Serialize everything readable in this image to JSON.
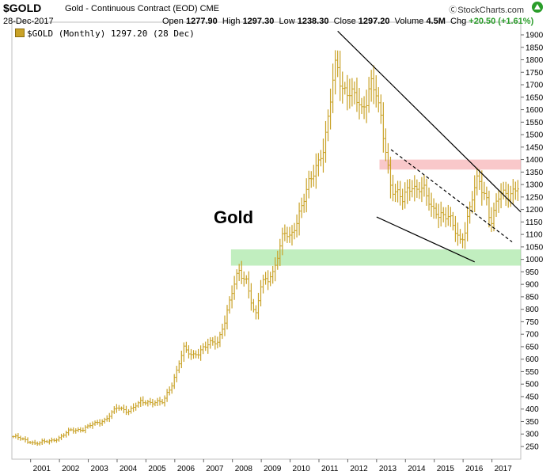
{
  "header": {
    "symbol": "$GOLD",
    "description": "Gold - Continuous Contract (EOD) CME",
    "date": "28-Dec-2017",
    "open_label": "Open",
    "open": "1277.90",
    "high_label": "High",
    "high": "1297.30",
    "low_label": "Low",
    "low": "1238.30",
    "close_label": "Close",
    "close": "1297.20",
    "volume_label": "Volume",
    "volume": "4.5M",
    "chg_label": "Chg",
    "chg": "+20.50 (+1.61%)",
    "watermark": "StockCharts.com"
  },
  "legend": {
    "text": "$GOLD (Monthly) 1297.20 (28 Dec)"
  },
  "annotation": {
    "text": "Gold"
  },
  "colors": {
    "bars": "#c9a227",
    "green_zone": "#8ee08a",
    "red_zone": "#f5a3a6",
    "trendline": "#000000"
  },
  "chart_data": {
    "type": "bar",
    "subtype": "ohlc-monthly",
    "title": "$GOLD (Monthly) 1297.20 (28 Dec)",
    "x_range": [
      2000.35,
      2018.0
    ],
    "ylim": [
      250,
      1950
    ],
    "y_ticks": [
      250,
      300,
      350,
      400,
      450,
      500,
      550,
      600,
      650,
      700,
      750,
      800,
      850,
      900,
      950,
      1000,
      1050,
      1100,
      1150,
      1200,
      1250,
      1300,
      1350,
      1400,
      1450,
      1500,
      1550,
      1600,
      1650,
      1700,
      1750,
      1800,
      1850,
      1900
    ],
    "x_ticks": [
      {
        "label": "2001",
        "x": 2001.0
      },
      {
        "label": "2002",
        "x": 2002.0
      },
      {
        "label": "2003",
        "x": 2003.0
      },
      {
        "label": "2004",
        "x": 2004.0
      },
      {
        "label": "2005",
        "x": 2005.0
      },
      {
        "label": "2006",
        "x": 2006.0
      },
      {
        "label": "2007",
        "x": 2007.0
      },
      {
        "label": "2008",
        "x": 2008.0
      },
      {
        "label": "2009",
        "x": 2009.0
      },
      {
        "label": "2010",
        "x": 2010.0
      },
      {
        "label": "2011",
        "x": 2011.0
      },
      {
        "label": "2012",
        "x": 2012.0
      },
      {
        "label": "2013",
        "x": 2013.0
      },
      {
        "label": "2014",
        "x": 2014.0
      },
      {
        "label": "2015",
        "x": 2015.0
      },
      {
        "label": "2016",
        "x": 2016.0
      },
      {
        "label": "2017",
        "x": 2017.0
      }
    ],
    "y_axis_side": "right",
    "grid": false,
    "anchors": [
      [
        2000.4,
        290
      ],
      [
        2000.8,
        275
      ],
      [
        2001.2,
        262
      ],
      [
        2001.6,
        270
      ],
      [
        2002.0,
        285
      ],
      [
        2002.4,
        315
      ],
      [
        2002.8,
        320
      ],
      [
        2003.2,
        340
      ],
      [
        2003.6,
        360
      ],
      [
        2004.0,
        405
      ],
      [
        2004.4,
        395
      ],
      [
        2004.8,
        425
      ],
      [
        2005.2,
        430
      ],
      [
        2005.6,
        425
      ],
      [
        2005.9,
        500
      ],
      [
        2006.3,
        640
      ],
      [
        2006.6,
        610
      ],
      [
        2007.0,
        650
      ],
      [
        2007.5,
        670
      ],
      [
        2007.8,
        790
      ],
      [
        2008.2,
        950
      ],
      [
        2008.5,
        920
      ],
      [
        2008.8,
        760
      ],
      [
        2009.0,
        900
      ],
      [
        2009.4,
        950
      ],
      [
        2009.8,
        1100
      ],
      [
        2010.0,
        1090
      ],
      [
        2010.5,
        1240
      ],
      [
        2010.9,
        1380
      ],
      [
        2011.2,
        1460
      ],
      [
        2011.6,
        1800
      ],
      [
        2011.8,
        1700
      ],
      [
        2012.2,
        1650
      ],
      [
        2012.5,
        1600
      ],
      [
        2012.8,
        1720
      ],
      [
        2013.0,
        1650
      ],
      [
        2013.3,
        1450
      ],
      [
        2013.5,
        1300
      ],
      [
        2013.9,
        1230
      ],
      [
        2014.2,
        1300
      ],
      [
        2014.6,
        1280
      ],
      [
        2014.9,
        1200
      ],
      [
        2015.2,
        1190
      ],
      [
        2015.5,
        1160
      ],
      [
        2015.9,
        1080
      ],
      [
        2016.0,
        1100
      ],
      [
        2016.5,
        1320
      ],
      [
        2016.8,
        1260
      ],
      [
        2016.95,
        1150
      ],
      [
        2017.3,
        1260
      ],
      [
        2017.6,
        1270
      ],
      [
        2017.9,
        1290
      ],
      [
        2017.97,
        1297
      ]
    ],
    "overlays": {
      "green_zone": [
        975,
        1040
      ],
      "red_zone": [
        1360,
        1400
      ],
      "trendlines": [
        {
          "style": "solid",
          "from": [
            2011.65,
            1915
          ],
          "to": [
            2018.0,
            1190
          ]
        },
        {
          "style": "solid",
          "from": [
            2013.0,
            1170
          ],
          "to": [
            2016.4,
            990
          ]
        },
        {
          "style": "dashed",
          "from": [
            2013.5,
            1440
          ],
          "to": [
            2017.7,
            1070
          ]
        }
      ]
    }
  }
}
